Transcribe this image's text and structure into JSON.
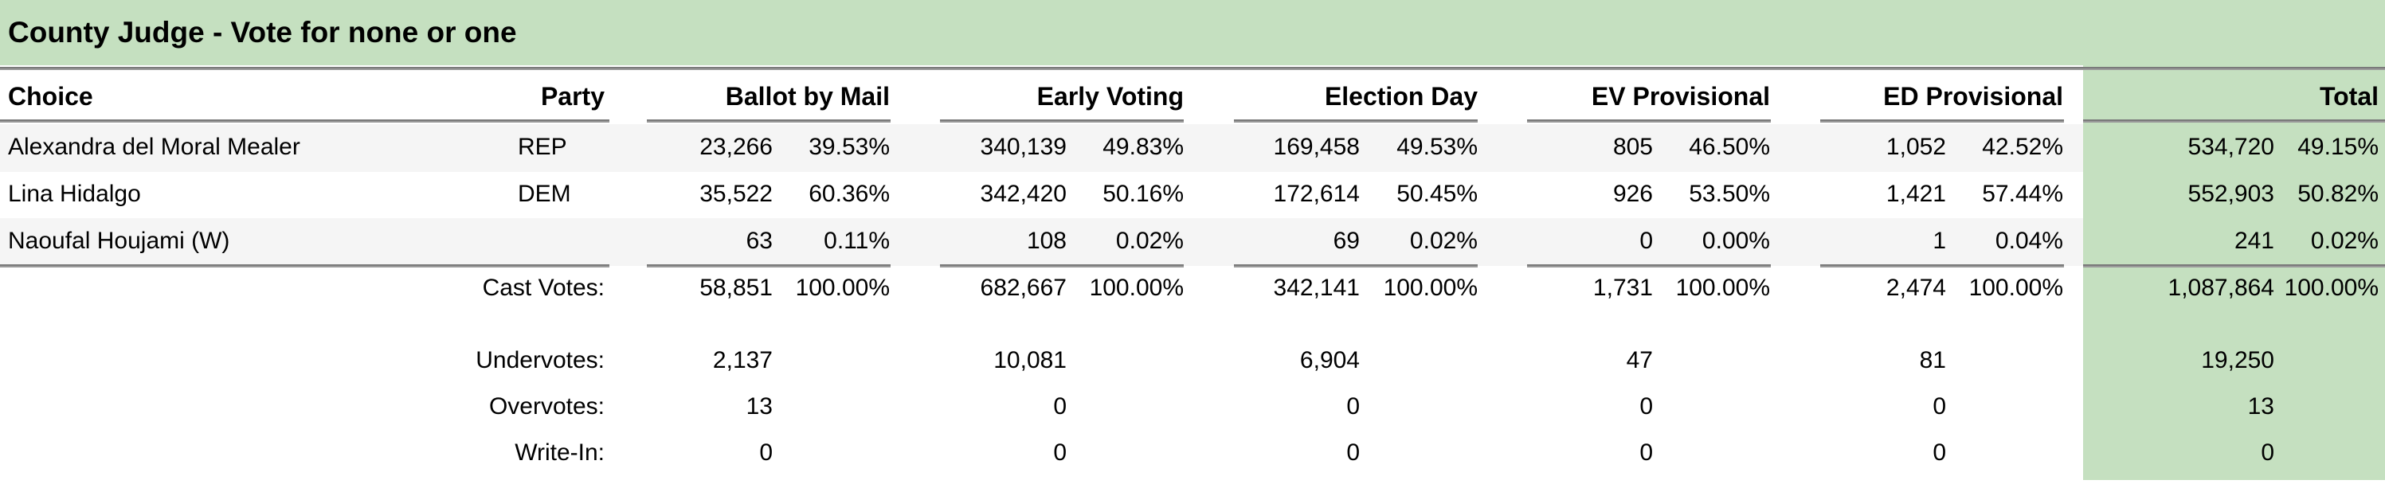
{
  "title": "County Judge - Vote for none or one",
  "headers": {
    "choice": "Choice",
    "party": "Party",
    "bbm": "Ballot by Mail",
    "ev": "Early Voting",
    "ed": "Election Day",
    "evp": "EV Provisional",
    "edp": "ED Provisional",
    "total": "Total"
  },
  "candidates": [
    {
      "name": "Alexandra del Moral Mealer",
      "party": "REP",
      "bbm": [
        "23,266",
        "39.53%"
      ],
      "ev": [
        "340,139",
        "49.83%"
      ],
      "ed": [
        "169,458",
        "49.53%"
      ],
      "evp": [
        "805",
        "46.50%"
      ],
      "edp": [
        "1,052",
        "42.52%"
      ],
      "total": [
        "534,720",
        "49.15%"
      ]
    },
    {
      "name": "Lina Hidalgo",
      "party": "DEM",
      "bbm": [
        "35,522",
        "60.36%"
      ],
      "ev": [
        "342,420",
        "50.16%"
      ],
      "ed": [
        "172,614",
        "50.45%"
      ],
      "evp": [
        "926",
        "53.50%"
      ],
      "edp": [
        "1,421",
        "57.44%"
      ],
      "total": [
        "552,903",
        "50.82%"
      ]
    },
    {
      "name": "Naoufal Houjami (W)",
      "party": "",
      "bbm": [
        "63",
        "0.11%"
      ],
      "ev": [
        "108",
        "0.02%"
      ],
      "ed": [
        "69",
        "0.02%"
      ],
      "evp": [
        "0",
        "0.00%"
      ],
      "edp": [
        "1",
        "0.04%"
      ],
      "total": [
        "241",
        "0.02%"
      ]
    }
  ],
  "cast": {
    "label": "Cast Votes:",
    "bbm": [
      "58,851",
      "100.00%"
    ],
    "ev": [
      "682,667",
      "100.00%"
    ],
    "ed": [
      "342,141",
      "100.00%"
    ],
    "evp": [
      "1,731",
      "100.00%"
    ],
    "edp": [
      "2,474",
      "100.00%"
    ],
    "total": [
      "1,087,864",
      "100.00%"
    ]
  },
  "summary": [
    {
      "label": "Undervotes:",
      "bbm": "2,137",
      "ev": "10,081",
      "ed": "6,904",
      "evp": "47",
      "edp": "81",
      "total": "19,250"
    },
    {
      "label": "Overvotes:",
      "bbm": "13",
      "ev": "0",
      "ed": "0",
      "evp": "0",
      "edp": "0",
      "total": "13"
    },
    {
      "label": "Write-In:",
      "bbm": "0",
      "ev": "0",
      "ed": "0",
      "evp": "0",
      "edp": "0",
      "total": "0"
    }
  ]
}
